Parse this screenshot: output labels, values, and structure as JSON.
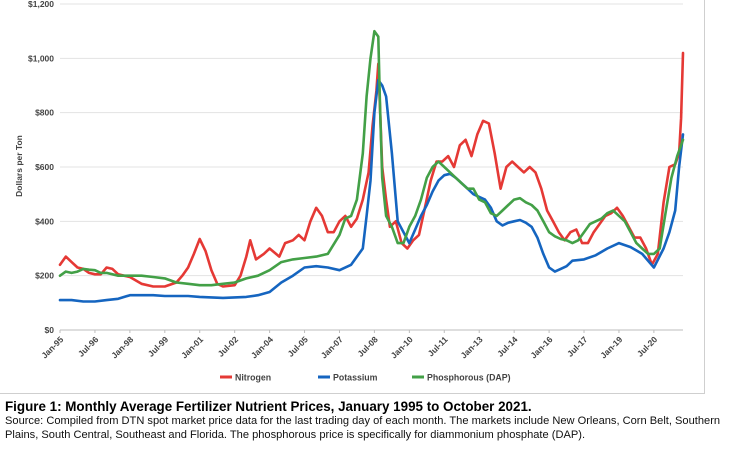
{
  "chart_data": {
    "type": "line",
    "ylabel": "Dollars per Ton",
    "ylim": [
      0,
      1200
    ],
    "y_ticks": [
      0,
      200,
      400,
      600,
      800,
      1000,
      1200
    ],
    "y_tick_labels": [
      "$0",
      "$200",
      "$400",
      "$600",
      "$800",
      "$1,000",
      "$1,200"
    ],
    "xlim": [
      "1995-01",
      "2021-10"
    ],
    "x_tick_labels": [
      "Jan-95",
      "Jul-96",
      "Jan-98",
      "Jul-99",
      "Jan-01",
      "Jul-02",
      "Jan-04",
      "Jul-05",
      "Jan-07",
      "Jul-08",
      "Jan-10",
      "Jul-11",
      "Jan-13",
      "Jul-14",
      "Jan-16",
      "Jul-17",
      "Jan-19",
      "Jul-20"
    ],
    "x_tick_dates": [
      "1995-01",
      "1996-07",
      "1998-01",
      "1999-07",
      "2001-01",
      "2002-07",
      "2004-01",
      "2005-07",
      "2007-01",
      "2008-07",
      "2010-01",
      "2011-07",
      "2013-01",
      "2014-07",
      "2016-01",
      "2017-07",
      "2019-01",
      "2020-07"
    ],
    "grid": "horizontal",
    "legend_position": "bottom",
    "series": [
      {
        "name": "Nitrogen",
        "color": "#e53935",
        "points": [
          [
            "1995-01",
            240
          ],
          [
            "1995-04",
            270
          ],
          [
            "1995-07",
            250
          ],
          [
            "1995-10",
            230
          ],
          [
            "1996-01",
            225
          ],
          [
            "1996-04",
            210
          ],
          [
            "1996-07",
            205
          ],
          [
            "1996-10",
            205
          ],
          [
            "1997-01",
            230
          ],
          [
            "1997-04",
            225
          ],
          [
            "1997-07",
            205
          ],
          [
            "1997-10",
            200
          ],
          [
            "1998-01",
            195
          ],
          [
            "1998-07",
            170
          ],
          [
            "1999-01",
            160
          ],
          [
            "1999-07",
            160
          ],
          [
            "2000-01",
            175
          ],
          [
            "2000-04",
            200
          ],
          [
            "2000-07",
            230
          ],
          [
            "2000-10",
            280
          ],
          [
            "2001-01",
            335
          ],
          [
            "2001-04",
            290
          ],
          [
            "2001-07",
            220
          ],
          [
            "2001-10",
            170
          ],
          [
            "2002-01",
            160
          ],
          [
            "2002-07",
            165
          ],
          [
            "2002-10",
            200
          ],
          [
            "2003-01",
            270
          ],
          [
            "2003-03",
            330
          ],
          [
            "2003-06",
            260
          ],
          [
            "2003-10",
            280
          ],
          [
            "2004-01",
            300
          ],
          [
            "2004-06",
            270
          ],
          [
            "2004-09",
            320
          ],
          [
            "2005-01",
            330
          ],
          [
            "2005-04",
            350
          ],
          [
            "2005-07",
            330
          ],
          [
            "2005-10",
            400
          ],
          [
            "2006-01",
            450
          ],
          [
            "2006-04",
            420
          ],
          [
            "2006-07",
            360
          ],
          [
            "2006-10",
            360
          ],
          [
            "2007-01",
            400
          ],
          [
            "2007-04",
            420
          ],
          [
            "2007-07",
            380
          ],
          [
            "2007-10",
            410
          ],
          [
            "2008-01",
            480
          ],
          [
            "2008-04",
            580
          ],
          [
            "2008-06",
            750
          ],
          [
            "2008-08",
            880
          ],
          [
            "2008-09",
            980
          ],
          [
            "2008-10",
            800
          ],
          [
            "2008-11",
            600
          ],
          [
            "2009-01",
            480
          ],
          [
            "2009-03",
            380
          ],
          [
            "2009-06",
            400
          ],
          [
            "2009-09",
            320
          ],
          [
            "2009-12",
            300
          ],
          [
            "2010-03",
            330
          ],
          [
            "2010-06",
            350
          ],
          [
            "2010-09",
            450
          ],
          [
            "2010-12",
            550
          ],
          [
            "2011-03",
            620
          ],
          [
            "2011-06",
            620
          ],
          [
            "2011-09",
            640
          ],
          [
            "2011-12",
            600
          ],
          [
            "2012-03",
            680
          ],
          [
            "2012-06",
            700
          ],
          [
            "2012-09",
            640
          ],
          [
            "2012-12",
            720
          ],
          [
            "2013-03",
            770
          ],
          [
            "2013-06",
            760
          ],
          [
            "2013-09",
            650
          ],
          [
            "2013-12",
            520
          ],
          [
            "2014-03",
            600
          ],
          [
            "2014-06",
            620
          ],
          [
            "2014-09",
            600
          ],
          [
            "2014-12",
            580
          ],
          [
            "2015-03",
            600
          ],
          [
            "2015-06",
            580
          ],
          [
            "2015-09",
            520
          ],
          [
            "2015-12",
            440
          ],
          [
            "2016-03",
            400
          ],
          [
            "2016-06",
            360
          ],
          [
            "2016-09",
            330
          ],
          [
            "2016-12",
            360
          ],
          [
            "2017-03",
            370
          ],
          [
            "2017-06",
            320
          ],
          [
            "2017-09",
            320
          ],
          [
            "2017-12",
            360
          ],
          [
            "2018-03",
            390
          ],
          [
            "2018-06",
            420
          ],
          [
            "2018-09",
            430
          ],
          [
            "2018-12",
            450
          ],
          [
            "2019-03",
            420
          ],
          [
            "2019-06",
            380
          ],
          [
            "2019-09",
            340
          ],
          [
            "2019-12",
            340
          ],
          [
            "2020-03",
            300
          ],
          [
            "2020-06",
            240
          ],
          [
            "2020-09",
            280
          ],
          [
            "2020-12",
            470
          ],
          [
            "2021-03",
            600
          ],
          [
            "2021-06",
            610
          ],
          [
            "2021-08",
            650
          ],
          [
            "2021-09",
            780
          ],
          [
            "2021-10",
            1020
          ]
        ]
      },
      {
        "name": "Potassium",
        "color": "#1565c0",
        "points": [
          [
            "1995-01",
            110
          ],
          [
            "1995-07",
            110
          ],
          [
            "1996-01",
            105
          ],
          [
            "1996-07",
            105
          ],
          [
            "1997-01",
            110
          ],
          [
            "1997-07",
            115
          ],
          [
            "1998-01",
            128
          ],
          [
            "1998-07",
            128
          ],
          [
            "1999-01",
            128
          ],
          [
            "1999-07",
            125
          ],
          [
            "2000-01",
            125
          ],
          [
            "2000-07",
            125
          ],
          [
            "2001-01",
            122
          ],
          [
            "2001-07",
            120
          ],
          [
            "2002-01",
            118
          ],
          [
            "2002-07",
            120
          ],
          [
            "2003-01",
            122
          ],
          [
            "2003-07",
            128
          ],
          [
            "2004-01",
            140
          ],
          [
            "2004-07",
            175
          ],
          [
            "2005-01",
            200
          ],
          [
            "2005-07",
            230
          ],
          [
            "2006-01",
            235
          ],
          [
            "2006-07",
            230
          ],
          [
            "2007-01",
            220
          ],
          [
            "2007-07",
            240
          ],
          [
            "2008-01",
            300
          ],
          [
            "2008-03",
            420
          ],
          [
            "2008-05",
            550
          ],
          [
            "2008-07",
            800
          ],
          [
            "2008-09",
            920
          ],
          [
            "2008-11",
            900
          ],
          [
            "2009-01",
            860
          ],
          [
            "2009-04",
            650
          ],
          [
            "2009-07",
            400
          ],
          [
            "2009-10",
            360
          ],
          [
            "2010-01",
            320
          ],
          [
            "2010-04",
            370
          ],
          [
            "2010-07",
            420
          ],
          [
            "2010-10",
            460
          ],
          [
            "2011-01",
            510
          ],
          [
            "2011-04",
            550
          ],
          [
            "2011-07",
            570
          ],
          [
            "2011-10",
            575
          ],
          [
            "2012-01",
            560
          ],
          [
            "2012-04",
            540
          ],
          [
            "2012-07",
            520
          ],
          [
            "2012-10",
            500
          ],
          [
            "2013-01",
            490
          ],
          [
            "2013-04",
            480
          ],
          [
            "2013-07",
            450
          ],
          [
            "2013-10",
            400
          ],
          [
            "2014-01",
            385
          ],
          [
            "2014-04",
            395
          ],
          [
            "2014-07",
            400
          ],
          [
            "2014-10",
            405
          ],
          [
            "2015-01",
            395
          ],
          [
            "2015-04",
            380
          ],
          [
            "2015-07",
            340
          ],
          [
            "2015-10",
            280
          ],
          [
            "2016-01",
            230
          ],
          [
            "2016-04",
            215
          ],
          [
            "2016-07",
            225
          ],
          [
            "2016-10",
            235
          ],
          [
            "2017-01",
            255
          ],
          [
            "2017-07",
            260
          ],
          [
            "2018-01",
            275
          ],
          [
            "2018-07",
            300
          ],
          [
            "2019-01",
            320
          ],
          [
            "2019-07",
            305
          ],
          [
            "2020-01",
            280
          ],
          [
            "2020-07",
            230
          ],
          [
            "2020-12",
            300
          ],
          [
            "2021-03",
            360
          ],
          [
            "2021-06",
            440
          ],
          [
            "2021-08",
            600
          ],
          [
            "2021-10",
            720
          ]
        ]
      },
      {
        "name": "Phosphorous (DAP)",
        "color": "#43a047",
        "points": [
          [
            "1995-01",
            200
          ],
          [
            "1995-04",
            215
          ],
          [
            "1995-07",
            210
          ],
          [
            "1995-10",
            215
          ],
          [
            "1996-01",
            225
          ],
          [
            "1996-04",
            222
          ],
          [
            "1996-07",
            220
          ],
          [
            "1996-10",
            210
          ],
          [
            "1997-01",
            210
          ],
          [
            "1997-07",
            200
          ],
          [
            "1998-01",
            200
          ],
          [
            "1998-07",
            200
          ],
          [
            "1999-01",
            195
          ],
          [
            "1999-07",
            190
          ],
          [
            "2000-01",
            175
          ],
          [
            "2000-07",
            170
          ],
          [
            "2001-01",
            165
          ],
          [
            "2001-07",
            165
          ],
          [
            "2002-01",
            170
          ],
          [
            "2002-07",
            175
          ],
          [
            "2003-01",
            190
          ],
          [
            "2003-07",
            200
          ],
          [
            "2004-01",
            220
          ],
          [
            "2004-07",
            250
          ],
          [
            "2005-01",
            260
          ],
          [
            "2005-07",
            265
          ],
          [
            "2006-01",
            270
          ],
          [
            "2006-07",
            280
          ],
          [
            "2007-01",
            350
          ],
          [
            "2007-04",
            410
          ],
          [
            "2007-07",
            420
          ],
          [
            "2007-10",
            480
          ],
          [
            "2008-01",
            650
          ],
          [
            "2008-03",
            860
          ],
          [
            "2008-05",
            1000
          ],
          [
            "2008-07",
            1100
          ],
          [
            "2008-09",
            1080
          ],
          [
            "2008-10",
            800
          ],
          [
            "2008-11",
            560
          ],
          [
            "2009-01",
            420
          ],
          [
            "2009-04",
            380
          ],
          [
            "2009-07",
            320
          ],
          [
            "2009-10",
            320
          ],
          [
            "2010-01",
            380
          ],
          [
            "2010-04",
            420
          ],
          [
            "2010-07",
            480
          ],
          [
            "2010-10",
            560
          ],
          [
            "2011-01",
            600
          ],
          [
            "2011-04",
            620
          ],
          [
            "2011-07",
            600
          ],
          [
            "2011-10",
            580
          ],
          [
            "2012-01",
            560
          ],
          [
            "2012-04",
            540
          ],
          [
            "2012-07",
            520
          ],
          [
            "2012-10",
            520
          ],
          [
            "2013-01",
            480
          ],
          [
            "2013-04",
            470
          ],
          [
            "2013-07",
            430
          ],
          [
            "2013-10",
            420
          ],
          [
            "2014-01",
            440
          ],
          [
            "2014-04",
            460
          ],
          [
            "2014-07",
            480
          ],
          [
            "2014-10",
            485
          ],
          [
            "2015-01",
            470
          ],
          [
            "2015-04",
            460
          ],
          [
            "2015-07",
            440
          ],
          [
            "2015-10",
            400
          ],
          [
            "2016-01",
            360
          ],
          [
            "2016-04",
            345
          ],
          [
            "2016-07",
            335
          ],
          [
            "2016-10",
            330
          ],
          [
            "2017-01",
            320
          ],
          [
            "2017-04",
            330
          ],
          [
            "2017-07",
            360
          ],
          [
            "2017-10",
            390
          ],
          [
            "2018-01",
            400
          ],
          [
            "2018-04",
            410
          ],
          [
            "2018-07",
            430
          ],
          [
            "2018-10",
            440
          ],
          [
            "2019-01",
            420
          ],
          [
            "2019-04",
            400
          ],
          [
            "2019-07",
            360
          ],
          [
            "2019-10",
            320
          ],
          [
            "2020-01",
            300
          ],
          [
            "2020-04",
            280
          ],
          [
            "2020-07",
            280
          ],
          [
            "2020-10",
            300
          ],
          [
            "2021-01",
            430
          ],
          [
            "2021-04",
            560
          ],
          [
            "2021-07",
            640
          ],
          [
            "2021-10",
            700
          ]
        ]
      }
    ]
  },
  "caption": {
    "title": "Figure 1: Monthly Average Fertilizer Nutrient Prices, January 1995 to October 2021.",
    "source": "Source: Compiled from DTN spot market price data for the last trading day of each month.  The markets include New Orleans, Corn Belt, Southern Plains, South Central, Southeast and Florida.  The phosphorous price is specifically for diammonium phosphate (DAP)."
  }
}
